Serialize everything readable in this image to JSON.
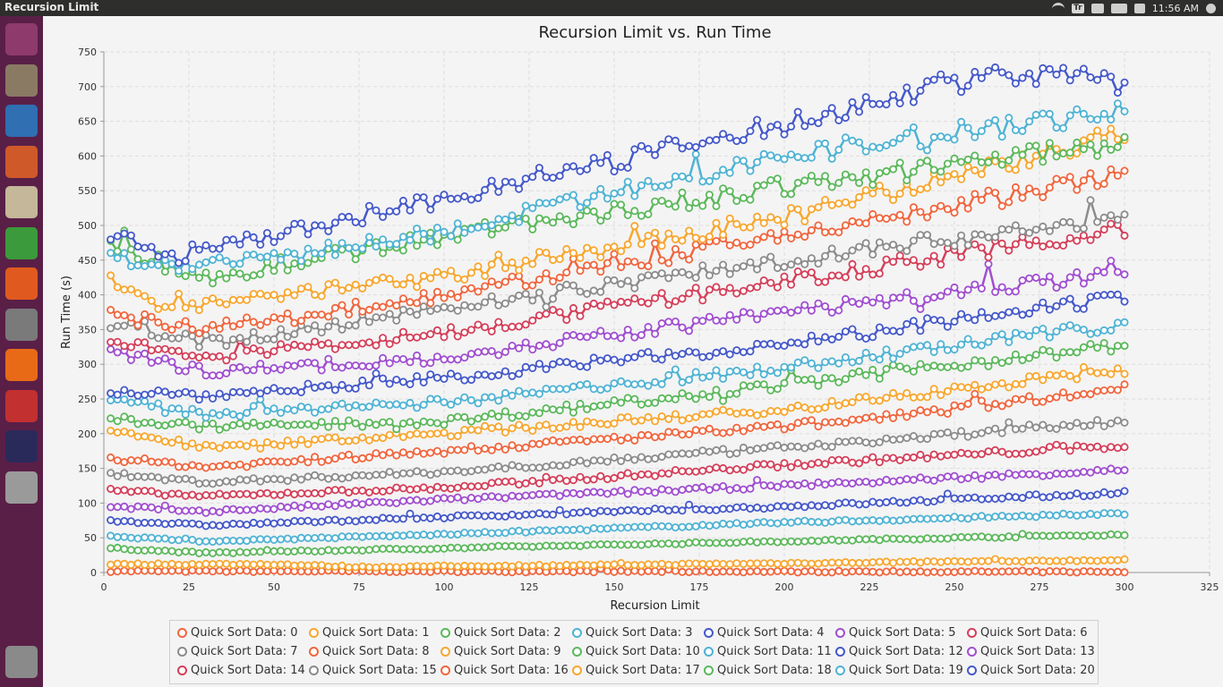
{
  "window": {
    "title": "Recursion Limit"
  },
  "tray": {
    "keyboard": "Tr",
    "clock": "11:56 AM"
  },
  "launcher": {
    "icons": [
      {
        "name": "ubuntu-dash-icon",
        "color": "#8e3a6c"
      },
      {
        "name": "files-icon",
        "color": "#8a7a64"
      },
      {
        "name": "writer-icon",
        "color": "#2f6fb2"
      },
      {
        "name": "impress-icon",
        "color": "#d0592a"
      },
      {
        "name": "amazon-icon",
        "color": "#c4b79a"
      },
      {
        "name": "calc-icon",
        "color": "#3b9a3b"
      },
      {
        "name": "software-center-icon",
        "color": "#e05a20"
      },
      {
        "name": "settings-icon",
        "color": "#7a7a7a"
      },
      {
        "name": "firefox-icon",
        "color": "#e86a17"
      },
      {
        "name": "disk-usage-icon",
        "color": "#c23030"
      },
      {
        "name": "intellij-icon",
        "color": "#2a2a5a"
      },
      {
        "name": "help-icon",
        "color": "#9a9a9a"
      }
    ],
    "trash": {
      "name": "trash-icon",
      "color": "#8a8a8a"
    }
  },
  "chart_data": {
    "type": "line",
    "title": "Recursion Limit vs. Run Time",
    "xlabel": "Recursion Limit",
    "ylabel": "Run Time (s)",
    "xlim": [
      0,
      325
    ],
    "ylim": [
      0,
      750
    ],
    "xticks": [
      0,
      25,
      50,
      75,
      100,
      125,
      150,
      175,
      200,
      225,
      250,
      275,
      300,
      325
    ],
    "yticks": [
      0,
      50,
      100,
      150,
      200,
      250,
      300,
      350,
      400,
      450,
      500,
      550,
      600,
      650,
      700,
      750
    ],
    "grid": true,
    "legend_position": "bottom",
    "x_range": [
      2,
      300
    ],
    "x_step": 2,
    "series": [
      {
        "name": "Quick Sort Data: 0",
        "color": "#f0663e",
        "start": 2,
        "end": 1,
        "keypoints": [
          [
            2,
            2
          ],
          [
            300,
            1
          ]
        ]
      },
      {
        "name": "Quick Sort Data: 1",
        "color": "#f7a72f",
        "start": 12,
        "end": 18,
        "keypoints": [
          [
            2,
            12
          ],
          [
            50,
            12
          ],
          [
            75,
            8
          ],
          [
            150,
            11
          ],
          [
            300,
            18
          ]
        ]
      },
      {
        "name": "Quick Sort Data: 2",
        "color": "#5cb85c",
        "start": 35,
        "end": 55,
        "keypoints": [
          [
            2,
            35
          ],
          [
            30,
            28
          ],
          [
            100,
            35
          ],
          [
            200,
            45
          ],
          [
            300,
            55
          ]
        ]
      },
      {
        "name": "Quick Sort Data: 3",
        "color": "#4fb3d4",
        "start": 52,
        "end": 85,
        "keypoints": [
          [
            2,
            52
          ],
          [
            30,
            45
          ],
          [
            100,
            55
          ],
          [
            200,
            72
          ],
          [
            300,
            85
          ]
        ]
      },
      {
        "name": "Quick Sort Data: 4",
        "color": "#4559c9",
        "start": 75,
        "end": 115,
        "keypoints": [
          [
            2,
            75
          ],
          [
            30,
            68
          ],
          [
            100,
            80
          ],
          [
            200,
            95
          ],
          [
            300,
            115
          ]
        ]
      },
      {
        "name": "Quick Sort Data: 5",
        "color": "#a04fd0",
        "start": 95,
        "end": 148,
        "keypoints": [
          [
            2,
            95
          ],
          [
            30,
            88
          ],
          [
            100,
            105
          ],
          [
            200,
            125
          ],
          [
            300,
            148
          ]
        ]
      },
      {
        "name": "Quick Sort Data: 6",
        "color": "#d4405a",
        "start": 118,
        "end": 183,
        "keypoints": [
          [
            2,
            118
          ],
          [
            30,
            110
          ],
          [
            100,
            122
          ],
          [
            200,
            155
          ],
          [
            300,
            183
          ]
        ]
      },
      {
        "name": "Quick Sort Data: 7",
        "color": "#8c8c8c",
        "start": 142,
        "end": 218,
        "keypoints": [
          [
            2,
            142
          ],
          [
            30,
            130
          ],
          [
            100,
            145
          ],
          [
            200,
            180
          ],
          [
            300,
            218
          ]
        ]
      },
      {
        "name": "Quick Sort Data: 8",
        "color": "#f0663e",
        "start": 165,
        "end": 265,
        "keypoints": [
          [
            2,
            165
          ],
          [
            30,
            152
          ],
          [
            100,
            175
          ],
          [
            200,
            210
          ],
          [
            300,
            265
          ]
        ]
      },
      {
        "name": "Quick Sort Data: 9",
        "color": "#f7a72f",
        "start": 205,
        "end": 292,
        "keypoints": [
          [
            2,
            205
          ],
          [
            30,
            180
          ],
          [
            100,
            200
          ],
          [
            200,
            235
          ],
          [
            300,
            292
          ]
        ]
      },
      {
        "name": "Quick Sort Data: 10",
        "color": "#5cb85c",
        "start": 222,
        "end": 328,
        "keypoints": [
          [
            2,
            222
          ],
          [
            30,
            210
          ],
          [
            100,
            218
          ],
          [
            200,
            270
          ],
          [
            300,
            328
          ]
        ]
      },
      {
        "name": "Quick Sort Data: 11",
        "color": "#4fb3d4",
        "start": 250,
        "end": 358,
        "keypoints": [
          [
            2,
            250
          ],
          [
            30,
            228
          ],
          [
            100,
            245
          ],
          [
            200,
            295
          ],
          [
            300,
            358
          ]
        ]
      },
      {
        "name": "Quick Sort Data: 12",
        "color": "#4559c9",
        "start": 262,
        "end": 395,
        "keypoints": [
          [
            2,
            262
          ],
          [
            30,
            255
          ],
          [
            100,
            280
          ],
          [
            200,
            330
          ],
          [
            300,
            395
          ]
        ]
      },
      {
        "name": "Quick Sort Data: 13",
        "color": "#a04fd0",
        "start": 318,
        "end": 432,
        "keypoints": [
          [
            2,
            318
          ],
          [
            30,
            290
          ],
          [
            100,
            310
          ],
          [
            200,
            375
          ],
          [
            300,
            432
          ]
        ]
      },
      {
        "name": "Quick Sort Data: 14",
        "color": "#d4405a",
        "start": 332,
        "end": 495,
        "keypoints": [
          [
            2,
            332
          ],
          [
            30,
            310
          ],
          [
            100,
            345
          ],
          [
            200,
            420
          ],
          [
            300,
            495
          ]
        ]
      },
      {
        "name": "Quick Sort Data: 15",
        "color": "#8c8c8c",
        "start": 358,
        "end": 512,
        "keypoints": [
          [
            2,
            358
          ],
          [
            30,
            330
          ],
          [
            100,
            380
          ],
          [
            200,
            450
          ],
          [
            300,
            512
          ]
        ]
      },
      {
        "name": "Quick Sort Data: 16",
        "color": "#f0663e",
        "start": 370,
        "end": 572,
        "keypoints": [
          [
            2,
            370
          ],
          [
            30,
            350
          ],
          [
            100,
            400
          ],
          [
            200,
            485
          ],
          [
            300,
            572
          ]
        ]
      },
      {
        "name": "Quick Sort Data: 17",
        "color": "#f7a72f",
        "start": 420,
        "end": 632,
        "keypoints": [
          [
            2,
            420
          ],
          [
            20,
            380
          ],
          [
            100,
            425
          ],
          [
            200,
            510
          ],
          [
            300,
            632
          ]
        ]
      },
      {
        "name": "Quick Sort Data: 18",
        "color": "#5cb85c",
        "start": 470,
        "end": 620,
        "keypoints": [
          [
            2,
            470
          ],
          [
            30,
            425
          ],
          [
            100,
            485
          ],
          [
            200,
            555
          ],
          [
            300,
            620
          ]
        ]
      },
      {
        "name": "Quick Sort Data: 19",
        "color": "#4fb3d4",
        "start": 452,
        "end": 668,
        "keypoints": [
          [
            2,
            452
          ],
          [
            30,
            440
          ],
          [
            100,
            490
          ],
          [
            200,
            600
          ],
          [
            300,
            668
          ]
        ]
      },
      {
        "name": "Quick Sort Data: 20",
        "color": "#4559c9",
        "start": 485,
        "end": 705,
        "keypoints": [
          [
            2,
            485
          ],
          [
            20,
            455
          ],
          [
            100,
            540
          ],
          [
            200,
            645
          ],
          [
            260,
            720
          ],
          [
            300,
            705
          ]
        ]
      }
    ]
  }
}
